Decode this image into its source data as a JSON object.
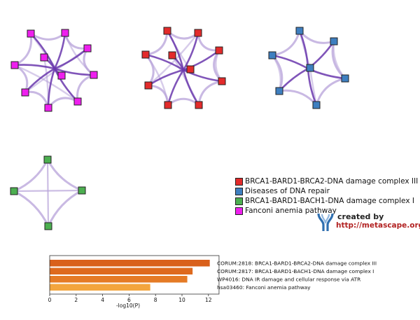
{
  "legend": {
    "items": [
      {
        "label": "BRCA1-BARD1-BRCA2-DNA damage complex III",
        "color": "#e32b2b"
      },
      {
        "label": "Diseases of DNA repair",
        "color": "#3e7fc0"
      },
      {
        "label": "BRCA1-BARD1-BACH1-DNA damage complex I",
        "color": "#4caf50"
      },
      {
        "label": "Fanconi anemia pathway",
        "color": "#ee1fee"
      }
    ]
  },
  "credit": {
    "line1": "created by",
    "line2": "http://metascape.org"
  },
  "node_colors": {
    "magenta": "#ee1fee",
    "red": "#e32b2b",
    "blue": "#3e7fc0",
    "green": "#4caf50"
  },
  "edge_colors": {
    "light": "#b7a2d9",
    "dark": "#6a37ad"
  },
  "chart_data": {
    "type": "bar",
    "orientation": "horizontal",
    "categories": [
      "CORUM:2818: BRCA1-BARD1-BRCA2-DNA damage complex III",
      "CORUM:2817: BRCA1-BARD1-BACH1-DNA damage complex I",
      "WP4016: DNA IR damage and cellular response via ATR",
      "hsa03460: Fanconi anemia pathway"
    ],
    "values": [
      12.1,
      10.8,
      10.4,
      7.6
    ],
    "colors": [
      "#d9601b",
      "#de6a1e",
      "#e57b26",
      "#f3a53e"
    ],
    "xlabel": "-log10(P)",
    "xticks": [
      0,
      2,
      4,
      6,
      8,
      10,
      12
    ],
    "xlim": [
      0,
      12.8
    ]
  }
}
